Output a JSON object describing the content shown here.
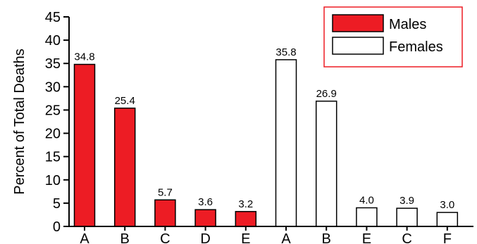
{
  "chart_data": {
    "type": "bar",
    "title": "",
    "xlabel": "",
    "ylabel": "Percent of Total Deaths",
    "ylim": [
      0,
      45
    ],
    "yticks": [
      0,
      5,
      10,
      15,
      20,
      25,
      30,
      35,
      40,
      45
    ],
    "grid": false,
    "legend_position": "top-right",
    "series": [
      {
        "name": "Males",
        "color": "#ed1c24",
        "categories": [
          "A",
          "B",
          "C",
          "D",
          "E"
        ],
        "values": [
          34.8,
          25.4,
          5.7,
          3.6,
          3.2
        ],
        "labels": [
          "34.8",
          "25.4",
          "5.7",
          "3.6",
          "3.2"
        ]
      },
      {
        "name": "Females",
        "color": "#ffffff",
        "categories": [
          "A",
          "B",
          "E",
          "C",
          "F"
        ],
        "values": [
          35.8,
          26.9,
          4.0,
          3.9,
          3.0
        ],
        "labels": [
          "35.8",
          "26.9",
          "4.0",
          "3.9",
          "3.0"
        ]
      }
    ]
  }
}
